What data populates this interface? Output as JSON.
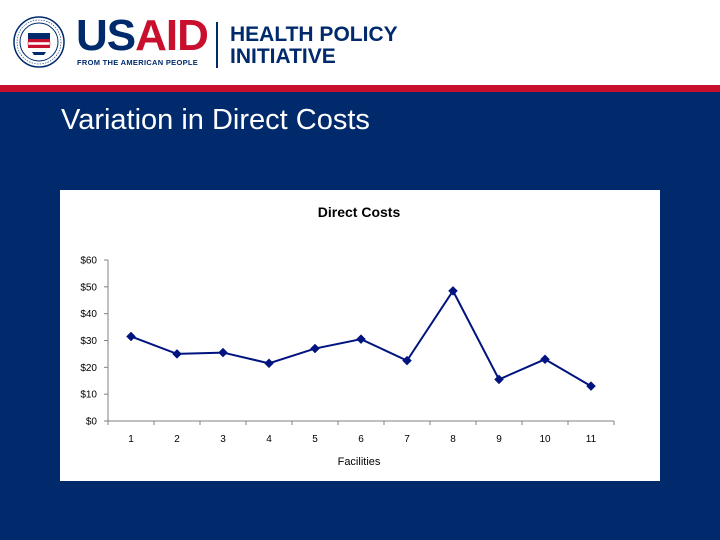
{
  "header": {
    "logo": {
      "brand_part1": "US",
      "brand_part2": "AID",
      "tagline": "FROM THE AMERICAN PEOPLE",
      "seal_icon": "usaid-seal-icon"
    },
    "program_line1": "HEALTH POLICY",
    "program_line2": "INITIATIVE"
  },
  "slide": {
    "title": "Variation in Direct Costs"
  },
  "colors": {
    "navy": "#002a6c",
    "red": "#c8102e",
    "series": "#00137f",
    "background": "#ffffff"
  },
  "chart_data": {
    "type": "line",
    "title": "Direct Costs",
    "xlabel": "Facilities",
    "ylabel": "",
    "categories": [
      "1",
      "2",
      "3",
      "4",
      "5",
      "6",
      "7",
      "8",
      "9",
      "10",
      "11"
    ],
    "series": [
      {
        "values": [
          31.5,
          25,
          25.5,
          21.5,
          27,
          30.5,
          22.5,
          48.5,
          15.5,
          23,
          13
        ]
      }
    ],
    "ylim": [
      0,
      60
    ],
    "yticks": [
      0,
      10,
      20,
      30,
      40,
      50,
      60
    ],
    "ytick_labels": [
      "$0",
      "$10",
      "$20",
      "$30",
      "$40",
      "$50",
      "$60"
    ],
    "grid": false,
    "legend": "none",
    "marker": "diamond"
  }
}
